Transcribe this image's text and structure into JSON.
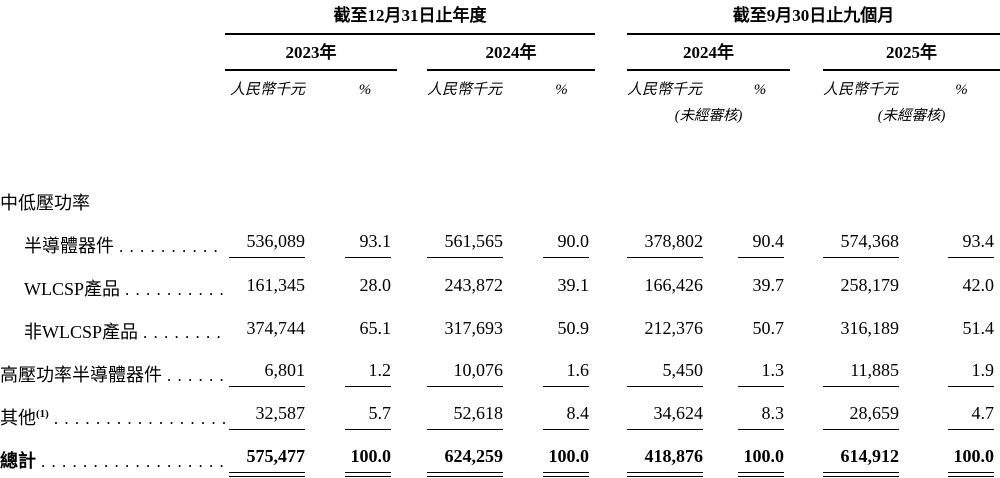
{
  "header": {
    "groups": [
      {
        "title": "截至12月31日止年度",
        "years": [
          {
            "label": "2023年",
            "note": ""
          },
          {
            "label": "2024年",
            "note": ""
          }
        ]
      },
      {
        "title": "截至9月30日止九個月",
        "years": [
          {
            "label": "2024年",
            "note": "(未經審核)"
          },
          {
            "label": "2025年",
            "note": "(未經審核)"
          }
        ]
      }
    ],
    "amount_label": "人民幣千元",
    "percent_label": "%"
  },
  "rows": [
    {
      "key": "medium-low-voltage-power",
      "label": "中低壓功率",
      "sup": "",
      "indent": false,
      "bold": false,
      "underline": "none",
      "values": []
    },
    {
      "key": "semiconductor-devices",
      "label": "半導體器件",
      "sup": "",
      "indent": true,
      "bold": false,
      "underline": "single",
      "values": [
        "536,089",
        "93.1",
        "561,565",
        "90.0",
        "378,802",
        "90.4",
        "574,368",
        "93.4"
      ]
    },
    {
      "key": "wlcsp-products",
      "label": "WLCSP產品",
      "sup": "",
      "indent": true,
      "bold": false,
      "underline": "none",
      "values": [
        "161,345",
        "28.0",
        "243,872",
        "39.1",
        "166,426",
        "39.7",
        "258,179",
        "42.0"
      ]
    },
    {
      "key": "non-wlcsp-products",
      "label": "非WLCSP產品",
      "sup": "",
      "indent": true,
      "bold": false,
      "underline": "none",
      "values": [
        "374,744",
        "65.1",
        "317,693",
        "50.9",
        "212,376",
        "50.7",
        "316,189",
        "51.4"
      ]
    },
    {
      "key": "high-voltage-power-semiconductor-devices",
      "label": "高壓功率半導體器件",
      "sup": "",
      "indent": false,
      "bold": false,
      "underline": "single",
      "values": [
        "6,801",
        "1.2",
        "10,076",
        "1.6",
        "5,450",
        "1.3",
        "11,885",
        "1.9"
      ]
    },
    {
      "key": "others",
      "label": "其他",
      "sup": "(1)",
      "indent": false,
      "bold": false,
      "underline": "single",
      "values": [
        "32,587",
        "5.7",
        "52,618",
        "8.4",
        "34,624",
        "8.3",
        "28,659",
        "4.7"
      ]
    },
    {
      "key": "total",
      "label": "總計",
      "sup": "",
      "indent": false,
      "bold": true,
      "underline": "double",
      "values": [
        "575,477",
        "100.0",
        "624,259",
        "100.0",
        "418,876",
        "100.0",
        "614,912",
        "100.0"
      ]
    }
  ],
  "colors": {
    "text": "#000000",
    "rule": "#000000",
    "background": "#ffffff"
  }
}
